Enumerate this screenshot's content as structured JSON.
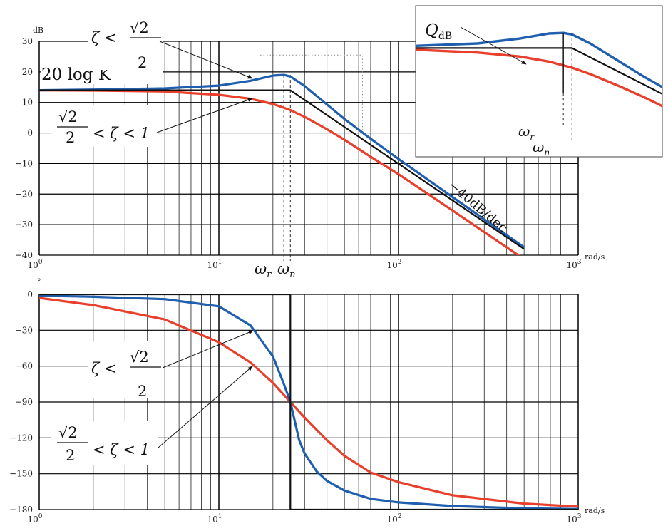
{
  "colors": {
    "zeta_small": "#1f5fae",
    "zeta_mid": "#e8402c",
    "asymptote": "#111111",
    "grid": "#000000",
    "guide": "#888888"
  },
  "chart_data": [
    {
      "type": "line",
      "panel": "magnitude",
      "x_scale": "log",
      "xlim": [
        1,
        1000
      ],
      "ylim": [
        -40,
        30
      ],
      "grid": true,
      "ylabel": "dB",
      "xlabel": "rad/s",
      "xticks": [
        {
          "base": "10",
          "exp": "0"
        },
        {
          "base": "10",
          "exp": "1"
        },
        {
          "base": "10",
          "exp": "2"
        },
        {
          "base": "10",
          "exp": "3"
        }
      ],
      "yticks": [
        "30",
        "20",
        "10",
        "0",
        "−10",
        "−20",
        "−30",
        "−40"
      ],
      "series": [
        {
          "role": "zeta_small",
          "x": [
            1,
            2,
            5,
            10,
            15,
            20,
            23,
            25,
            30,
            40,
            50,
            70,
            100,
            200,
            500
          ],
          "y": [
            14,
            14.2,
            14.6,
            15.5,
            17.1,
            18.8,
            19,
            18.5,
            15.4,
            9.3,
            4.6,
            -1.9,
            -8.5,
            -21,
            -37.4
          ]
        },
        {
          "role": "zeta_mid",
          "x": [
            1,
            2,
            5,
            10,
            15,
            20,
            25,
            30,
            40,
            50,
            70,
            100,
            200,
            500
          ],
          "y": [
            14,
            13.9,
            13.6,
            12.5,
            11.2,
            9.5,
            7.5,
            5.3,
            1.2,
            -2.2,
            -7.8,
            -13.5,
            -25.4,
            -41.3
          ]
        },
        {
          "role": "asymptote",
          "x": [
            1,
            25,
            500
          ],
          "y": [
            14,
            14,
            -38
          ]
        }
      ],
      "annotations": {
        "wr": {
          "label": "ω",
          "sub": "r",
          "x": 23
        },
        "wn": {
          "label": "ω",
          "sub": "n",
          "x": 25
        },
        "k_label": "20 log K",
        "slope_label": "−40dB/dec",
        "zeta_small": {
          "prefix": "ζ <",
          "num": "√2",
          "den": "2"
        },
        "zeta_mid": {
          "num": "√2",
          "den": "2",
          "suffix": "< ζ < 1"
        }
      },
      "inset": {
        "peak_label": "Q",
        "peak_sub": "dB",
        "wr": {
          "label": "ω",
          "sub": "r"
        },
        "wn": {
          "label": "ω",
          "sub": "n"
        }
      }
    },
    {
      "type": "line",
      "panel": "phase",
      "x_scale": "log",
      "xlim": [
        1,
        1000
      ],
      "ylim": [
        -180,
        0
      ],
      "grid": true,
      "ylabel": "°",
      "xlabel": "rad/s",
      "xticks": [
        {
          "base": "10",
          "exp": "0"
        },
        {
          "base": "10",
          "exp": "1"
        },
        {
          "base": "10",
          "exp": "2"
        },
        {
          "base": "10",
          "exp": "3"
        }
      ],
      "yticks": [
        "0",
        "−30",
        "−60",
        "−90",
        "−120",
        "−150",
        "−180"
      ],
      "series": [
        {
          "role": "zeta_small",
          "x": [
            1,
            2,
            5,
            10,
            15,
            20,
            23,
            25,
            28,
            30,
            35,
            40,
            50,
            70,
            100,
            200,
            500,
            1000
          ],
          "y": [
            -1,
            -2,
            -4,
            -10,
            -26,
            -52,
            -75,
            -90,
            -122,
            -133,
            -148,
            -156,
            -164,
            -171,
            -174,
            -177,
            -179,
            -179.5
          ]
        },
        {
          "role": "zeta_mid",
          "x": [
            1,
            2,
            5,
            10,
            15,
            20,
            25,
            30,
            40,
            50,
            70,
            100,
            200,
            500,
            1000
          ],
          "y": [
            -3,
            -9,
            -21,
            -40,
            -57,
            -74,
            -90,
            -103,
            -122,
            -135,
            -149,
            -157,
            -168,
            -175,
            -177.5
          ]
        },
        {
          "role": "asymptote",
          "x": [
            1,
            25,
            25,
            1000
          ],
          "y": [
            0,
            0,
            -180,
            -180
          ]
        }
      ],
      "annotations": {
        "zeta_small": {
          "prefix": "ζ <",
          "num": "√2",
          "den": "2"
        },
        "zeta_mid": {
          "num": "√2",
          "den": "2",
          "suffix": "< ζ < 1"
        }
      }
    }
  ]
}
